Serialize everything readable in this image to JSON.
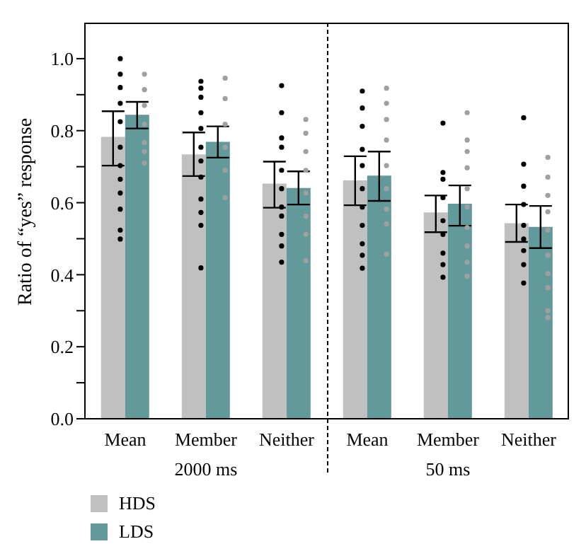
{
  "chart_data": [
    {
      "type": "bar",
      "ylabel": "Ratio of “yes” response",
      "xlabel": "2000 ms",
      "categories": [
        "Mean",
        "Member",
        "Neither"
      ],
      "series": [
        {
          "name": "HDS",
          "color": "#c0c0c0",
          "values": [
            0.783,
            0.734,
            0.653
          ],
          "errors": [
            [
              0.703,
              0.854
            ],
            [
              0.674,
              0.795
            ],
            [
              0.586,
              0.714
            ]
          ]
        },
        {
          "name": "LDS",
          "color": "#62999a",
          "values": [
            0.844,
            0.769,
            0.641
          ],
          "errors": [
            [
              0.806,
              0.88
            ],
            [
              0.725,
              0.812
            ],
            [
              0.595,
              0.687
            ]
          ]
        },
        {
          "type": "scatter",
          "color": "#000000",
          "x": [
            "Mean",
            "Mean",
            "Mean",
            "Mean",
            "Mean",
            "Mean",
            "Mean",
            "Mean",
            "Mean",
            "Mean",
            "Mean",
            "Mean",
            "Member",
            "Member",
            "Member",
            "Member",
            "Member",
            "Member",
            "Member",
            "Member",
            "Member",
            "Member",
            "Member",
            "Member",
            "Neither",
            "Neither",
            "Neither",
            "Neither",
            "Neither",
            "Neither",
            "Neither",
            "Neither",
            "Neither",
            "Neither",
            "Neither"
          ],
          "values": [
            1.0,
            0.957,
            0.92,
            0.876,
            0.825,
            0.754,
            0.703,
            0.665,
            0.627,
            0.582,
            0.524,
            0.499,
            0.937,
            0.918,
            0.893,
            0.85,
            0.806,
            0.754,
            0.716,
            0.671,
            0.61,
            0.573,
            0.537,
            0.419,
            0.925,
            0.85,
            0.78,
            0.754,
            0.69,
            0.639,
            0.588,
            0.563,
            0.512,
            0.48,
            0.435
          ]
        },
        {
          "type": "scatter",
          "color": "#a0a0a0",
          "x": [
            "Mean",
            "Mean",
            "Mean",
            "Mean",
            "Mean",
            "Mean",
            "Mean",
            "Member",
            "Member",
            "Member",
            "Member",
            "Member",
            "Member",
            "Neither",
            "Neither",
            "Neither",
            "Neither",
            "Neither",
            "Neither",
            "Neither",
            "Neither"
          ],
          "values": [
            0.957,
            0.914,
            0.87,
            0.818,
            0.767,
            0.742,
            0.71,
            0.946,
            0.889,
            0.818,
            0.754,
            0.69,
            0.614,
            0.831,
            0.793,
            0.742,
            0.69,
            0.627,
            0.563,
            0.512,
            0.439
          ]
        }
      ],
      "marker": "circle",
      "ylim": [
        0,
        1.1
      ],
      "yticks": [
        {
          "value": 0,
          "label": "0.0"
        },
        {
          "value": 0.1,
          "label": null
        },
        {
          "value": 0.2,
          "label": "0.2"
        },
        {
          "value": 0.3,
          "label": null
        },
        {
          "value": 0.4,
          "label": "0.4"
        },
        {
          "value": 0.5,
          "label": null
        },
        {
          "value": 0.6,
          "label": "0.6"
        },
        {
          "value": 0.7,
          "label": null
        },
        {
          "value": 0.8,
          "label": "0.8"
        },
        {
          "value": 0.9,
          "label": null
        },
        {
          "value": 1,
          "label": "1.0"
        }
      ],
      "legend": "bottom left",
      "grid": false
    },
    {
      "type": "bar",
      "xlabel": "50 ms",
      "categories": [
        "Mean",
        "Member",
        "Neither"
      ],
      "series": [
        {
          "color": "#c0c0c0",
          "values": [
            0.662,
            0.573,
            0.543
          ],
          "errors": [
            [
              0.593,
              0.729
            ],
            [
              0.518,
              0.62
            ],
            [
              0.491,
              0.595
            ]
          ]
        },
        {
          "color": "#62999a",
          "values": [
            0.675,
            0.597,
            0.533
          ],
          "errors": [
            [
              0.605,
              0.742
            ],
            [
              0.536,
              0.648
            ],
            [
              0.474,
              0.591
            ]
          ]
        },
        {
          "type": "scatter",
          "color": "#000000",
          "x": [
            "Mean",
            "Mean",
            "Mean",
            "Mean",
            "Mean",
            "Mean",
            "Mean",
            "Mean",
            "Mean",
            "Mean",
            "Mean",
            "Member",
            "Member",
            "Member",
            "Member",
            "Member",
            "Member",
            "Member",
            "Member",
            "Member",
            "Neither",
            "Neither",
            "Neither",
            "Neither",
            "Neither",
            "Neither",
            "Neither",
            "Neither",
            "Neither"
          ],
          "values": [
            0.91,
            0.863,
            0.812,
            0.748,
            0.703,
            0.639,
            0.588,
            0.537,
            0.486,
            0.454,
            0.418,
            0.821,
            0.684,
            0.665,
            0.614,
            0.55,
            0.512,
            0.46,
            0.428,
            0.393,
            0.836,
            0.707,
            0.646,
            0.595,
            0.537,
            0.499,
            0.467,
            0.428,
            0.377
          ]
        },
        {
          "type": "scatter",
          "color": "#a0a0a0",
          "x": [
            "Mean",
            "Mean",
            "Mean",
            "Mean",
            "Mean",
            "Mean",
            "Mean",
            "Mean",
            "Mean",
            "Member",
            "Member",
            "Member",
            "Member",
            "Member",
            "Member",
            "Member",
            "Member",
            "Member",
            "Member",
            "Neither",
            "Neither",
            "Neither",
            "Neither",
            "Neither",
            "Neither",
            "Neither",
            "Neither",
            "Neither",
            "Neither"
          ],
          "values": [
            0.918,
            0.876,
            0.831,
            0.774,
            0.703,
            0.639,
            0.582,
            0.541,
            0.457,
            0.85,
            0.774,
            0.742,
            0.697,
            0.639,
            0.588,
            0.531,
            0.48,
            0.435,
            0.396,
            0.726,
            0.671,
            0.62,
            0.575,
            0.524,
            0.454,
            0.403,
            0.364,
            0.3,
            0.281
          ]
        }
      ],
      "marker": "circle",
      "ylim": [
        0,
        1.1
      ],
      "tick_labels": "x",
      "grid": false
    }
  ]
}
